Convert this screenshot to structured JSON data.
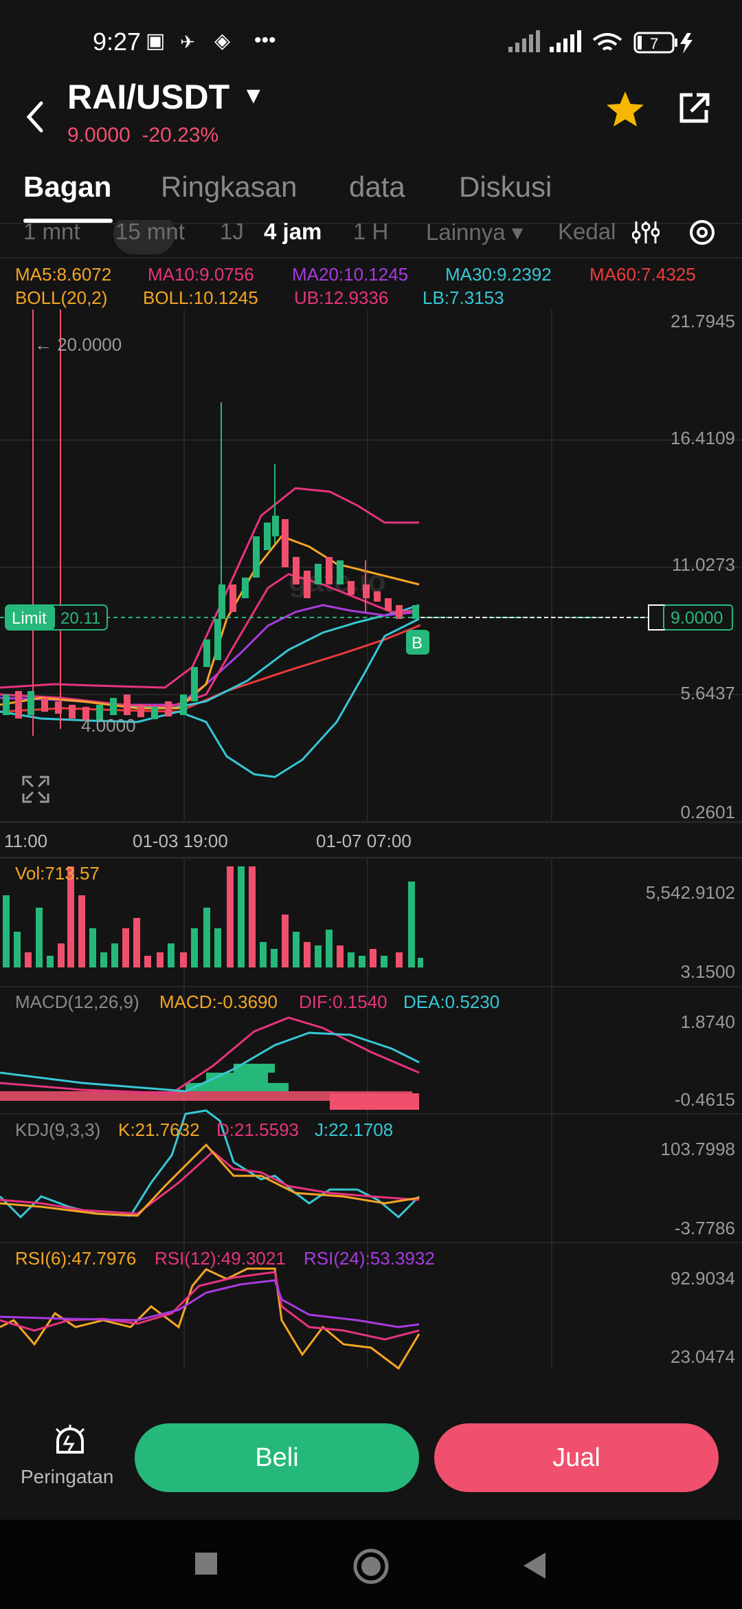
{
  "status_bar": {
    "time": "9:27",
    "battery": "7",
    "icons": [
      "message-icon",
      "bird-icon",
      "dropbox-icon",
      "more-dots-icon",
      "signal-icon",
      "signal-icon",
      "wifi-icon",
      "battery-icon",
      "charging-icon"
    ]
  },
  "header": {
    "pair": "RAI/USDT",
    "last_price": "9.0000",
    "change_pct": "-20.23%",
    "icons": {
      "back": "back-arrow-icon",
      "favorite": "star-icon",
      "share": "share-icon",
      "dropdown": "caret-down-icon"
    },
    "favorite_color": "#f5b800"
  },
  "tabs": [
    {
      "label": "Bagan",
      "active": true
    },
    {
      "label": "Ringkasan",
      "active": false
    },
    {
      "label": "data",
      "active": false
    },
    {
      "label": "Diskusi",
      "active": false
    }
  ],
  "intervals": [
    {
      "label": "1 mnt"
    },
    {
      "label": "15 mnt"
    },
    {
      "label": "1J"
    },
    {
      "label": "4 jam",
      "active": true
    },
    {
      "label": "1 H"
    },
    {
      "label": "Lainnya ▾"
    },
    {
      "label": "Kedal"
    }
  ],
  "ma_legend": {
    "ma5": "MA5:8.6072",
    "ma10": "MA10:9.0756",
    "ma20": "MA20:10.1245",
    "ma30": "MA30:9.2392",
    "ma60": "MA60:7.4325",
    "boll": "BOLL(20,2)",
    "boll_mid": "BOLL:10.1245",
    "ub": "UB:12.9336",
    "lb": "LB:7.3153"
  },
  "colors": {
    "up": "#26b87a",
    "down": "#f0506e",
    "ma5": "#f5a623",
    "ma10": "#e8337f",
    "ma20": "#a93be0",
    "ma30": "#36c8d6",
    "ma60": "#ef3b3b",
    "dif": "#e8337f",
    "dea": "#36c8d6",
    "k": "#f5a623",
    "d": "#e8337f",
    "j": "#36c8d6",
    "rsi6": "#f5a623",
    "rsi12": "#e8337f",
    "rsi24": "#a93be0"
  },
  "main_chart": {
    "y_labels": [
      "21.7945",
      "16.4109",
      "11.0273",
      "5.6437",
      "0.2601"
    ],
    "x_labels": [
      "11:00",
      "01-03 19:00",
      "01-07 07:00"
    ],
    "high_annotation": "← 20.0000",
    "low_annotation": "4.0000",
    "limit_label": "Limit",
    "limit_value": "20.11",
    "current_price_tag": "9.0000",
    "buy_marker": "B",
    "watermark": "gate.io",
    "expand_icon": "expand-icon"
  },
  "volume": {
    "legend": "Vol:713.57",
    "y_max": "5,542.9102",
    "y_min": "3.1500"
  },
  "macd": {
    "name": "MACD(12,26,9)",
    "macd": "MACD:-0.3690",
    "dif": "DIF:0.1540",
    "dea": "DEA:0.5230",
    "y_max": "1.8740",
    "y_min": "-0.4615"
  },
  "kdj": {
    "name": "KDJ(9,3,3)",
    "k": "K:21.7632",
    "d": "D:21.5593",
    "j": "J:22.1708",
    "y_max": "103.7998",
    "y_min": "-3.7786"
  },
  "rsi": {
    "rsi6": "RSI(6):47.7976",
    "rsi12": "RSI(12):49.3021",
    "rsi24": "RSI(24):53.3932",
    "y_max": "92.9034",
    "y_min": "23.0474"
  },
  "actions": {
    "alert_label": "Peringatan",
    "alert_icon": "alarm-icon",
    "buy_label": "Beli",
    "sell_label": "Jual"
  },
  "navbar": {
    "icons": [
      "recent-apps-icon",
      "home-icon",
      "back-nav-icon"
    ]
  }
}
